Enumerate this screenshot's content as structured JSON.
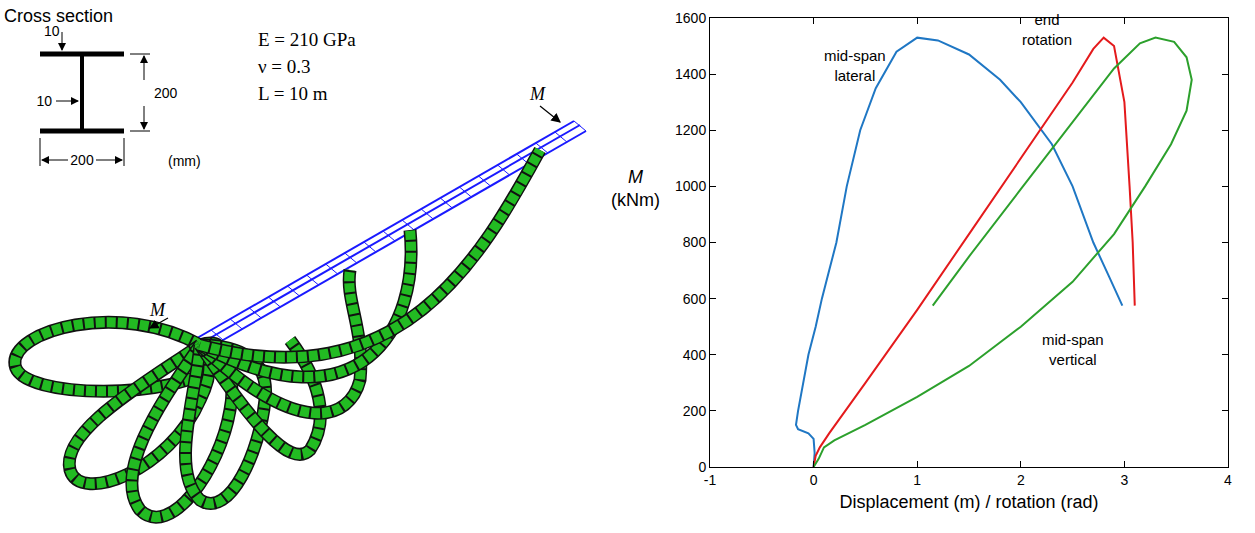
{
  "chart_data": {
    "type": "line",
    "xlabel": "Displacement (m) / rotation (rad)",
    "ylabel": "M (kNm)",
    "xlim": [
      -1,
      4
    ],
    "xticks": [
      -1,
      0,
      1,
      2,
      3,
      4
    ],
    "ylim": [
      0,
      1600
    ],
    "yticks": [
      0,
      200,
      400,
      600,
      800,
      1000,
      1200,
      1400,
      1600
    ],
    "grid": false,
    "series": [
      {
        "name": "mid-span lateral",
        "color": "#1f77c4",
        "x": [
          0,
          0.01,
          0.0,
          -0.05,
          -0.15,
          -0.17,
          -0.15,
          -0.1,
          -0.05,
          0.02,
          0.08,
          0.15,
          0.22,
          0.32,
          0.45,
          0.6,
          0.8,
          1.0,
          1.2,
          1.5,
          1.8,
          2.0,
          2.3,
          2.5,
          2.7,
          2.85,
          2.98
        ],
        "values": [
          0,
          50,
          100,
          120,
          135,
          150,
          200,
          300,
          400,
          500,
          600,
          700,
          800,
          1000,
          1200,
          1350,
          1480,
          1530,
          1520,
          1470,
          1380,
          1300,
          1150,
          1000,
          800,
          680,
          575
        ]
      },
      {
        "name": "end rotation",
        "color": "#e41a1c",
        "x": [
          0,
          0.02,
          0.06,
          0.15,
          0.5,
          1.0,
          1.5,
          2.0,
          2.5,
          2.7,
          2.8,
          2.9,
          3.0,
          3.05,
          3.08,
          3.1
        ],
        "values": [
          0,
          40,
          70,
          120,
          300,
          560,
          830,
          1100,
          1370,
          1490,
          1530,
          1500,
          1300,
          1000,
          800,
          575
        ]
      },
      {
        "name": "mid-span vertical",
        "color": "#2ca02c",
        "x": [
          0,
          0.05,
          0.1,
          0.2,
          0.5,
          1.0,
          1.5,
          2.0,
          2.5,
          2.9,
          3.2,
          3.45,
          3.6,
          3.65,
          3.6,
          3.48,
          3.3,
          3.15,
          2.9,
          2.5,
          2.0,
          1.5,
          1.15
        ],
        "values": [
          0,
          30,
          70,
          95,
          150,
          250,
          360,
          500,
          660,
          830,
          1000,
          1150,
          1270,
          1380,
          1460,
          1515,
          1530,
          1510,
          1420,
          1230,
          990,
          750,
          575
        ]
      }
    ],
    "annotations": [
      {
        "text": "mid-span lateral",
        "x": 0.4,
        "y": 1430
      },
      {
        "text": "end rotation",
        "x": 2.25,
        "y": 1560
      },
      {
        "text": "mid-span vertical",
        "x": 2.5,
        "y": 420
      }
    ]
  },
  "diagram": {
    "cross_section": {
      "title": "Cross section",
      "flange_thickness": "10",
      "web_thickness": "10",
      "depth": "200",
      "width": "200",
      "unit": "(mm)"
    },
    "properties": [
      "E = 210 GPa",
      "ν = 0.3",
      "L = 10 m"
    ],
    "load_labels": [
      "M",
      "M"
    ]
  }
}
